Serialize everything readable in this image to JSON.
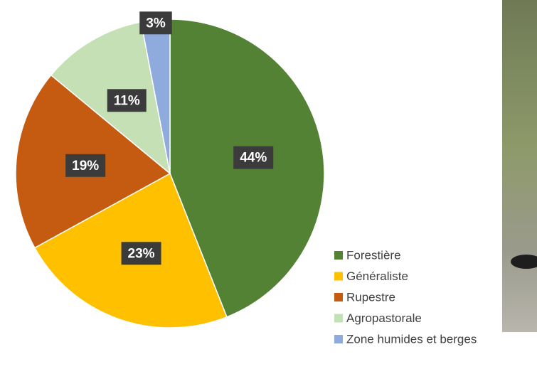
{
  "chart_data": {
    "type": "pie",
    "categories": [
      "Forestière",
      "Généraliste",
      "Rupestre",
      "Agropastorale",
      "Zone humides et berges"
    ],
    "values": [
      44,
      23,
      19,
      11,
      3
    ],
    "value_labels": [
      "44%",
      "23%",
      "19%",
      "11%",
      "3%"
    ],
    "colors": [
      "#548235",
      "#ffc000",
      "#c55a11",
      "#c5e0b4",
      "#8faadc"
    ],
    "legend": "right"
  }
}
